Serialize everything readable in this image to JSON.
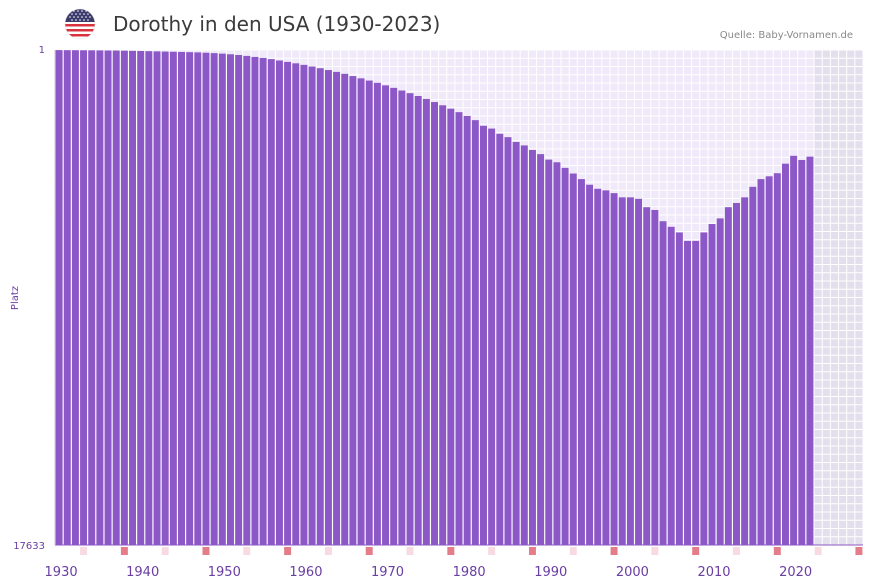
{
  "header": {
    "title": "Dorothy in den USA (1930-2023)",
    "source": "Quelle: Baby-Vornamen.de"
  },
  "colors": {
    "bar": "#8c57c6",
    "grid_bg": "#efe9f9",
    "future_bg": "#e3dfec",
    "axis_text": "#6a3ea2",
    "decade_marker": "#e57c8a",
    "minor_marker": "#f7dbe1"
  },
  "chart_data": {
    "type": "bar",
    "title": "Dorothy in den USA (1930-2023)",
    "xlabel": "",
    "ylabel": "Platz",
    "y_inverted": true,
    "ylim": [
      1,
      17633
    ],
    "ytick_labels": [
      "1",
      "17633"
    ],
    "xlim": [
      1929.5,
      2028.5
    ],
    "xtick_labels": [
      "1930",
      "1940",
      "1950",
      "1960",
      "1970",
      "1980",
      "1990",
      "2000",
      "2010",
      "2020"
    ],
    "forecast_region_start": 2022.5,
    "x": [
      1930,
      1931,
      1932,
      1933,
      1934,
      1935,
      1936,
      1937,
      1938,
      1939,
      1940,
      1941,
      1942,
      1943,
      1944,
      1945,
      1946,
      1947,
      1948,
      1949,
      1950,
      1951,
      1952,
      1953,
      1954,
      1955,
      1956,
      1957,
      1958,
      1959,
      1960,
      1961,
      1962,
      1963,
      1964,
      1965,
      1966,
      1967,
      1968,
      1969,
      1970,
      1971,
      1972,
      1973,
      1974,
      1975,
      1976,
      1977,
      1978,
      1979,
      1980,
      1981,
      1982,
      1983,
      1984,
      1985,
      1986,
      1987,
      1988,
      1989,
      1990,
      1991,
      1992,
      1993,
      1994,
      1995,
      1996,
      1997,
      1998,
      1999,
      2000,
      2001,
      2002,
      2003,
      2004,
      2005,
      2006,
      2007,
      2008,
      2009,
      2010,
      2011,
      2012,
      2013,
      2014,
      2015,
      2016,
      2017,
      2018,
      2019,
      2020,
      2021,
      2022
    ],
    "values": [
      5,
      7,
      8,
      10,
      12,
      14,
      17,
      19,
      24,
      30,
      36,
      43,
      50,
      57,
      64,
      70,
      78,
      86,
      98,
      112,
      130,
      153,
      179,
      212,
      248,
      284,
      325,
      375,
      425,
      475,
      530,
      590,
      650,
      715,
      780,
      850,
      930,
      1010,
      1090,
      1170,
      1260,
      1350,
      1445,
      1540,
      1640,
      1745,
      1855,
      1970,
      2090,
      2215,
      2350,
      2500,
      2700,
      2800,
      2985,
      3105,
      3275,
      3400,
      3560,
      3710,
      3905,
      4000,
      4200,
      4400,
      4600,
      4800,
      4945,
      5000,
      5100,
      5250,
      5250,
      5300,
      5600,
      5700,
      6100,
      6300,
      6500,
      6800,
      6800,
      6500,
      6200,
      6000,
      5600,
      5450,
      5250,
      4875,
      4600,
      4500,
      4390,
      4050,
      3770,
      3920,
      3800
    ]
  }
}
